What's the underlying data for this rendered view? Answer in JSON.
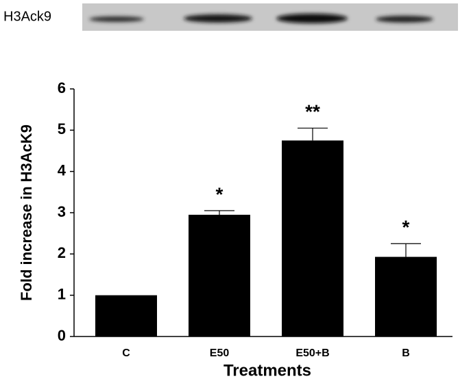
{
  "chart_data": {
    "type": "bar",
    "blot_label": "H3Ack9",
    "xlabel": "Treatments",
    "ylabel": "Fold increase in H3AcK9",
    "categories": [
      "C",
      "E50",
      "E50+B",
      "B"
    ],
    "values": [
      1,
      2.95,
      4.75,
      1.93
    ],
    "errors": [
      null,
      0.1,
      0.3,
      0.32
    ],
    "annotations": [
      null,
      "*",
      "**",
      "*"
    ],
    "color": "#000000",
    "ylim": [
      0,
      6
    ],
    "yticks": [
      0,
      1,
      2,
      3,
      4,
      5,
      6
    ]
  }
}
